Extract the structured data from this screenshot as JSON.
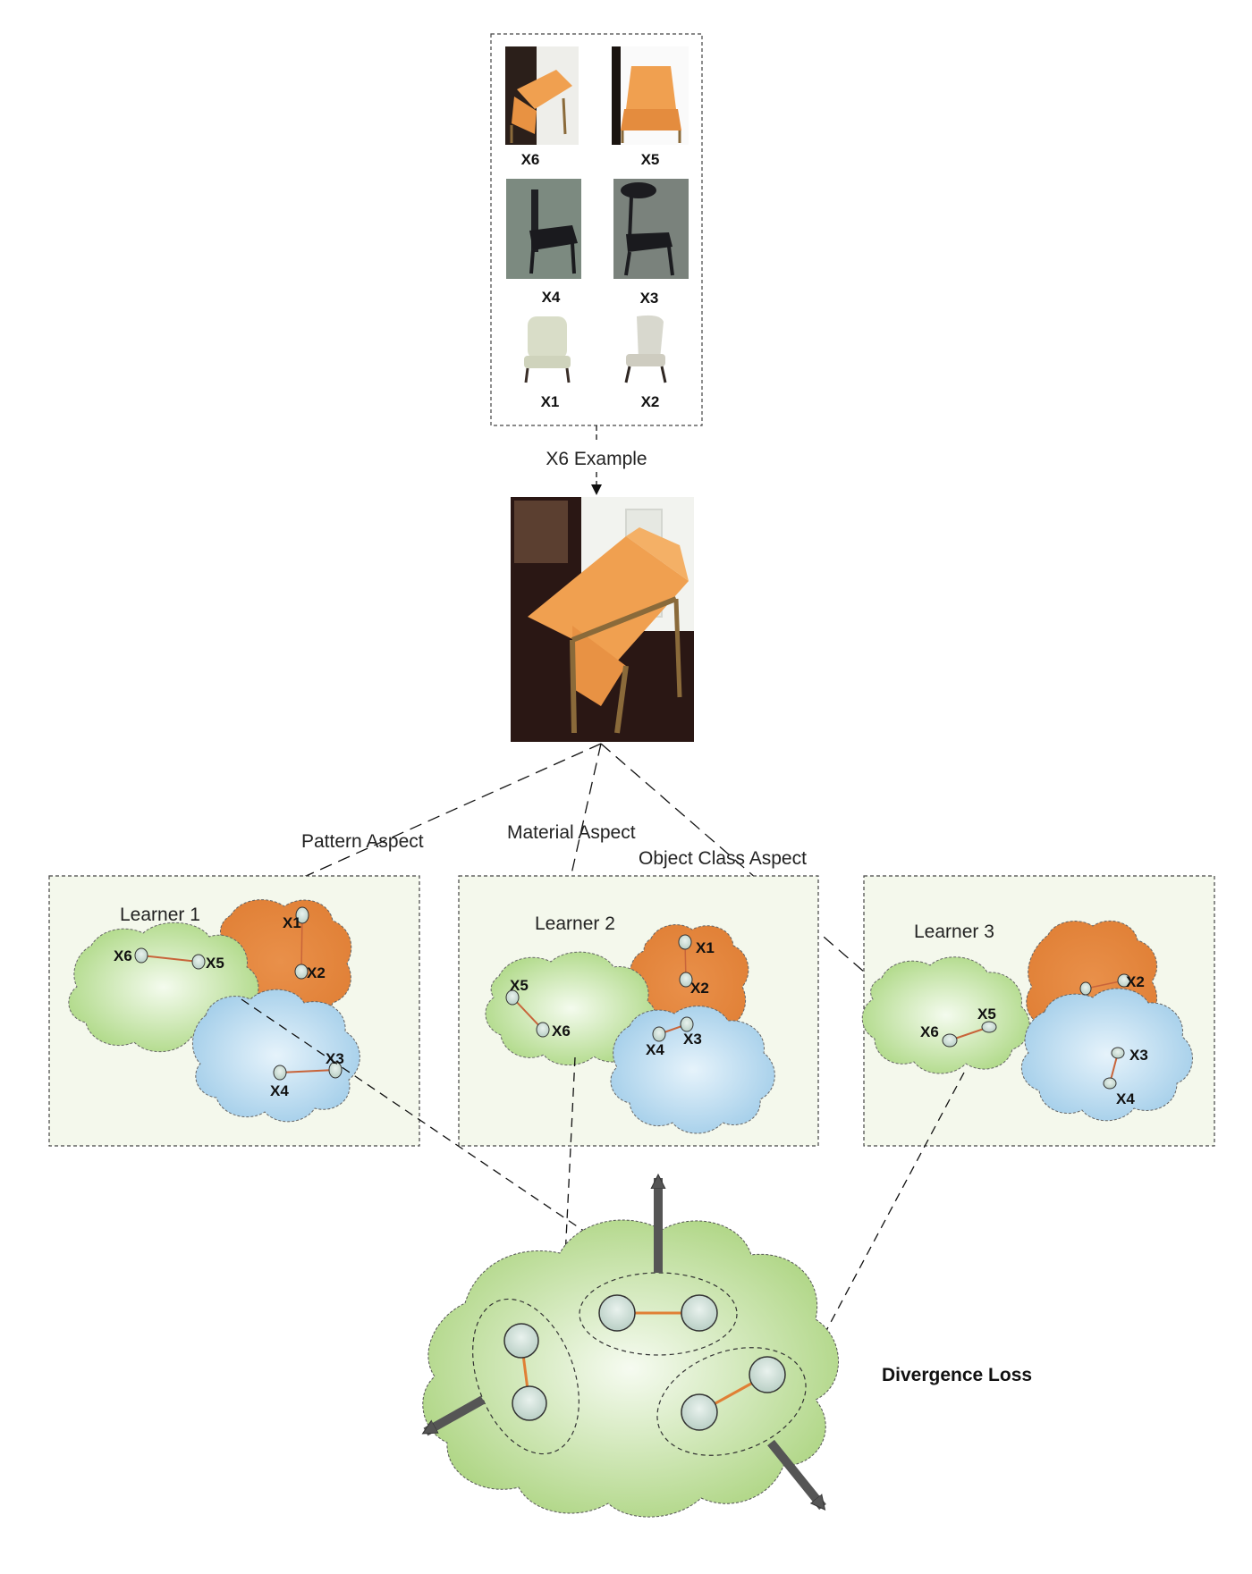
{
  "gallery": {
    "labels": [
      "X6",
      "X5",
      "X4",
      "X3",
      "X1",
      "X2"
    ]
  },
  "example_label": "X6 Example",
  "aspects": {
    "pattern": "Pattern Aspect",
    "material": "Material Aspect",
    "object_class": "Object Class Aspect"
  },
  "learners": [
    {
      "title": "Learner 1",
      "points": [
        "X6",
        "X5",
        "X1",
        "X2",
        "X3",
        "X4"
      ]
    },
    {
      "title": "Learner 2",
      "points": [
        "X1",
        "X2",
        "X5",
        "X6",
        "X4",
        "X3"
      ]
    },
    {
      "title": "Learner 3",
      "points": [
        "X5",
        "X6",
        "X2",
        "X3",
        "X4"
      ]
    }
  ],
  "loss_label": "Divergence Loss",
  "colors": {
    "green_cloud": "#bfe09a",
    "orange_cloud": "#e8924a",
    "blue_cloud": "#a9d0ea",
    "chair_orange": "#f0a050",
    "edge": "#c8643a"
  }
}
